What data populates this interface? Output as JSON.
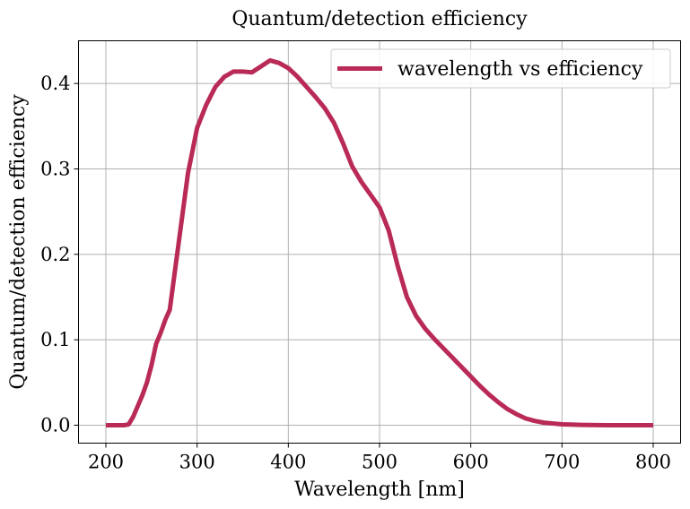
{
  "chart_data": {
    "type": "line",
    "title": "Quantum/detection efficiency",
    "xlabel": "Wavelength [nm]",
    "ylabel": "Quantum/detection efficiency",
    "xlim": [
      170,
      830
    ],
    "ylim": [
      -0.021,
      0.45
    ],
    "xticks": [
      200,
      300,
      400,
      500,
      600,
      700,
      800
    ],
    "xtick_labels": [
      "200",
      "300",
      "400",
      "500",
      "600",
      "700",
      "800"
    ],
    "yticks": [
      0.0,
      0.1,
      0.2,
      0.3,
      0.4
    ],
    "ytick_labels": [
      "0.0",
      "0.1",
      "0.2",
      "0.3",
      "0.4"
    ],
    "grid": true,
    "legend_position": "top-right",
    "series": [
      {
        "name": "wavelength vs efficiency",
        "color": "#b92a57",
        "x": [
          200,
          210,
          220,
          225,
          230,
          240,
          245,
          250,
          255,
          260,
          265,
          270,
          280,
          290,
          300,
          310,
          320,
          330,
          340,
          350,
          360,
          370,
          380,
          390,
          400,
          410,
          420,
          430,
          440,
          450,
          460,
          470,
          480,
          490,
          500,
          510,
          520,
          530,
          540,
          550,
          560,
          570,
          580,
          590,
          600,
          610,
          620,
          630,
          640,
          650,
          660,
          670,
          680,
          690,
          700,
          710,
          720,
          730,
          740,
          750,
          760,
          770,
          780,
          790,
          800
        ],
        "y": [
          0.0,
          0.0,
          0.0,
          0.001,
          0.01,
          0.035,
          0.05,
          0.07,
          0.095,
          0.108,
          0.123,
          0.135,
          0.215,
          0.295,
          0.348,
          0.375,
          0.396,
          0.408,
          0.414,
          0.414,
          0.413,
          0.42,
          0.427,
          0.424,
          0.418,
          0.408,
          0.396,
          0.384,
          0.371,
          0.354,
          0.33,
          0.303,
          0.285,
          0.27,
          0.255,
          0.228,
          0.186,
          0.15,
          0.128,
          0.113,
          0.101,
          0.09,
          0.079,
          0.068,
          0.057,
          0.046,
          0.036,
          0.027,
          0.019,
          0.013,
          0.008,
          0.005,
          0.003,
          0.002,
          0.001,
          0.0007,
          0.0004,
          0.0002,
          0.0001,
          0.0,
          0.0,
          0.0,
          0.0,
          0.0,
          0.0
        ]
      }
    ]
  }
}
